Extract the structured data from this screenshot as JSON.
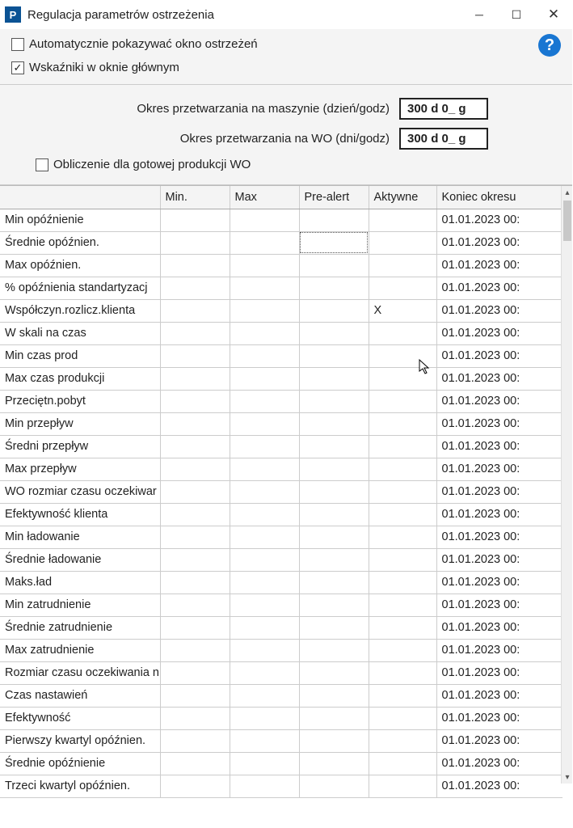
{
  "window": {
    "title": "Regulacja parametrów ostrzeżenia",
    "app_icon_letter": "P"
  },
  "checkboxes": {
    "auto_show": {
      "label": "Automatycznie pokazywać okno ostrzeżeń",
      "checked": false
    },
    "indicators_main": {
      "label": "Wskaźniki w oknie głównym",
      "checked": true
    },
    "calc_finished": {
      "label": "Obliczenie dla gotowej produkcji WO",
      "checked": false
    }
  },
  "fields": {
    "machine_period": {
      "label": "Okres przetwarzania na maszynie (dzień/godz)",
      "value": "300 d 0_ g"
    },
    "wo_period": {
      "label": "Okres przetwarzania na WO (dni/godz)",
      "value": "300 d 0_ g"
    }
  },
  "help_glyph": "?",
  "table": {
    "columns": [
      "",
      "Min.",
      "Max",
      "Pre-alert",
      "Aktywne",
      "Koniec okresu"
    ],
    "rows": [
      {
        "name": "Min opóźnienie",
        "min": "",
        "max": "",
        "pre": "",
        "act": "",
        "end": "01.01.2023 00:",
        "focus": ""
      },
      {
        "name": "Średnie opóźnien.",
        "min": "",
        "max": "",
        "pre": "",
        "act": "",
        "end": "01.01.2023 00:",
        "focus": "pre"
      },
      {
        "name": "Max opóźnien.",
        "min": "",
        "max": "",
        "pre": "",
        "act": "",
        "end": "01.01.2023 00:",
        "focus": ""
      },
      {
        "name": "% opóźnienia standartyzacj",
        "min": "",
        "max": "",
        "pre": "",
        "act": "",
        "end": "01.01.2023 00:",
        "focus": ""
      },
      {
        "name": "Współczyn.rozlicz.klienta",
        "min": "",
        "max": "",
        "pre": "",
        "act": "X",
        "end": "01.01.2023 00:",
        "focus": ""
      },
      {
        "name": "W skali na czas",
        "min": "",
        "max": "",
        "pre": "",
        "act": "",
        "end": "01.01.2023 00:",
        "focus": ""
      },
      {
        "name": "Min czas prod",
        "min": "",
        "max": "",
        "pre": "",
        "act": "",
        "end": "01.01.2023 00:",
        "focus": ""
      },
      {
        "name": "Max czas produkcji",
        "min": "",
        "max": "",
        "pre": "",
        "act": "",
        "end": "01.01.2023 00:",
        "focus": ""
      },
      {
        "name": "Przeciętn.pobyt",
        "min": "",
        "max": "",
        "pre": "",
        "act": "",
        "end": "01.01.2023 00:",
        "focus": ""
      },
      {
        "name": "Min przepływ",
        "min": "",
        "max": "",
        "pre": "",
        "act": "",
        "end": "01.01.2023 00:",
        "focus": ""
      },
      {
        "name": "Średni przepływ",
        "min": "",
        "max": "",
        "pre": "",
        "act": "",
        "end": "01.01.2023 00:",
        "focus": ""
      },
      {
        "name": "Max przepływ",
        "min": "",
        "max": "",
        "pre": "",
        "act": "",
        "end": "01.01.2023 00:",
        "focus": ""
      },
      {
        "name": "WO rozmiar czasu oczekiwar",
        "min": "",
        "max": "",
        "pre": "",
        "act": "",
        "end": "01.01.2023 00:",
        "focus": ""
      },
      {
        "name": "Efektywność klienta",
        "min": "",
        "max": "",
        "pre": "",
        "act": "",
        "end": "01.01.2023 00:",
        "focus": ""
      },
      {
        "name": "Min ładowanie",
        "min": "",
        "max": "",
        "pre": "",
        "act": "",
        "end": "01.01.2023 00:",
        "focus": ""
      },
      {
        "name": "Średnie ładowanie",
        "min": "",
        "max": "",
        "pre": "",
        "act": "",
        "end": "01.01.2023 00:",
        "focus": ""
      },
      {
        "name": "Maks.ład",
        "min": "",
        "max": "",
        "pre": "",
        "act": "",
        "end": "01.01.2023 00:",
        "focus": ""
      },
      {
        "name": "Min zatrudnienie",
        "min": "",
        "max": "",
        "pre": "",
        "act": "",
        "end": "01.01.2023 00:",
        "focus": ""
      },
      {
        "name": "Średnie zatrudnienie",
        "min": "",
        "max": "",
        "pre": "",
        "act": "",
        "end": "01.01.2023 00:",
        "focus": ""
      },
      {
        "name": "Max zatrudnienie",
        "min": "",
        "max": "",
        "pre": "",
        "act": "",
        "end": "01.01.2023 00:",
        "focus": ""
      },
      {
        "name": "Rozmiar czasu oczekiwania n",
        "min": "",
        "max": "",
        "pre": "",
        "act": "",
        "end": "01.01.2023 00:",
        "focus": ""
      },
      {
        "name": "Czas nastawień",
        "min": "",
        "max": "",
        "pre": "",
        "act": "",
        "end": "01.01.2023 00:",
        "focus": ""
      },
      {
        "name": "Efektywność",
        "min": "",
        "max": "",
        "pre": "",
        "act": "",
        "end": "01.01.2023 00:",
        "focus": ""
      },
      {
        "name": "Pierwszy kwartyl opóźnien.",
        "min": "",
        "max": "",
        "pre": "",
        "act": "",
        "end": "01.01.2023 00:",
        "focus": ""
      },
      {
        "name": "Średnie opóźnienie",
        "min": "",
        "max": "",
        "pre": "",
        "act": "",
        "end": "01.01.2023 00:",
        "focus": ""
      },
      {
        "name": "Trzeci kwartyl opóźnien.",
        "min": "",
        "max": "",
        "pre": "",
        "act": "",
        "end": "01.01.2023 00:",
        "focus": ""
      }
    ]
  }
}
